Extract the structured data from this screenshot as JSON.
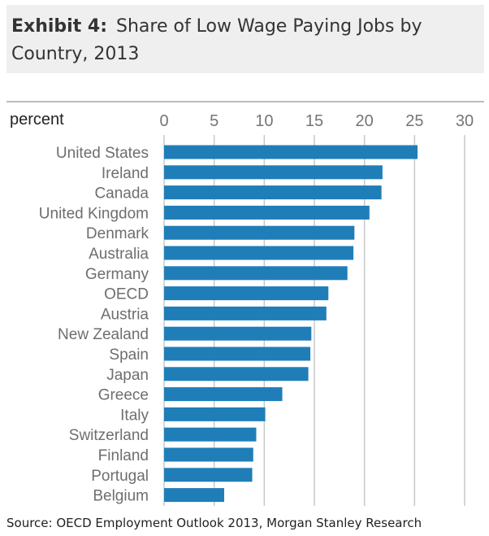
{
  "header": {
    "exhibit_label": "Exhibit 4:",
    "title": "Share of Low Wage Paying Jobs by Country, 2013"
  },
  "source": "Source: OECD Employment Outlook 2013, Morgan Stanley Research",
  "colors": {
    "bar": "#1f7eb8",
    "grid": "#c9c9c9",
    "header_bg": "#efefef"
  },
  "chart_data": {
    "type": "bar",
    "orientation": "horizontal",
    "title": "Share of Low Wage Paying Jobs by Country, 2013",
    "unit_label": "percent",
    "xlim": [
      0,
      30
    ],
    "ticks": [
      0,
      5,
      10,
      15,
      20,
      25,
      30
    ],
    "categories": [
      "United States",
      "Ireland",
      "Canada",
      "United Kingdom",
      "Denmark",
      "Australia",
      "Germany",
      "OECD",
      "Austria",
      "New Zealand",
      "Spain",
      "Japan",
      "Greece",
      "Italy",
      "Switzerland",
      "Finland",
      "Portugal",
      "Belgium"
    ],
    "values": [
      25.3,
      21.8,
      21.7,
      20.5,
      19.0,
      18.9,
      18.3,
      16.4,
      16.2,
      14.7,
      14.6,
      14.4,
      11.8,
      10.1,
      9.2,
      8.9,
      8.8,
      6.0
    ],
    "grid": true
  }
}
